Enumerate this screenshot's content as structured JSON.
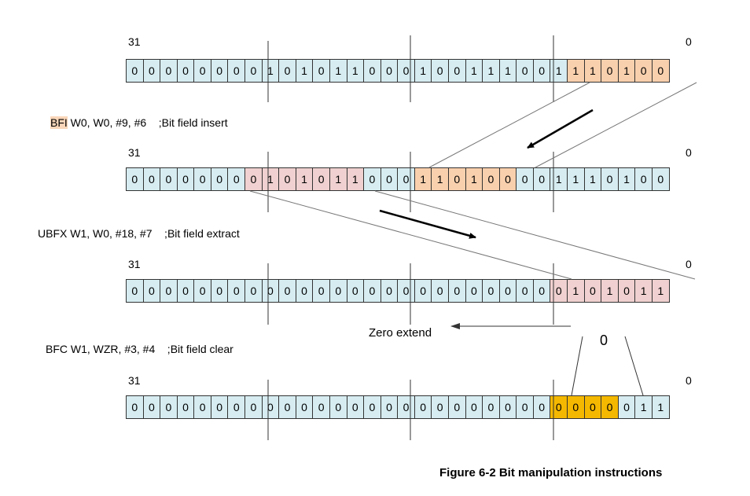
{
  "colors": {
    "normal": "#d6ecf1",
    "inserted_field": "#f9d0ad",
    "extracted_field": "#f0d0d0",
    "cleared_field": "#f5b800",
    "mnemonic_highlight": "#f9d6b9"
  },
  "registers": [
    {
      "msb_label": "31",
      "lsb_label": "0",
      "bits": [
        "0",
        "0",
        "0",
        "0",
        "0",
        "0",
        "0",
        "0",
        "1",
        "0",
        "1",
        "0",
        "1",
        "1",
        "0",
        "0",
        "0",
        "1",
        "0",
        "0",
        "1",
        "1",
        "1",
        "0",
        "0",
        "1",
        "1",
        "1",
        "0",
        "1",
        "0",
        "0"
      ],
      "highlight": [
        26,
        31
      ],
      "highlight_color": "peach"
    },
    {
      "msb_label": "31",
      "lsb_label": "0",
      "bits": [
        "0",
        "0",
        "0",
        "0",
        "0",
        "0",
        "0",
        "0",
        "1",
        "0",
        "1",
        "0",
        "1",
        "1",
        "0",
        "0",
        "0",
        "1",
        "1",
        "0",
        "1",
        "0",
        "0",
        "0",
        "0",
        "1",
        "1",
        "1",
        "0",
        "1",
        "0",
        "0"
      ],
      "highlight": [
        7,
        13
      ],
      "highlight_color": "pink",
      "highlight2": [
        17,
        22
      ],
      "highlight2_color": "peach"
    },
    {
      "msb_label": "31",
      "lsb_label": "0",
      "bits": [
        "0",
        "0",
        "0",
        "0",
        "0",
        "0",
        "0",
        "0",
        "0",
        "0",
        "0",
        "0",
        "0",
        "0",
        "0",
        "0",
        "0",
        "0",
        "0",
        "0",
        "0",
        "0",
        "0",
        "0",
        "0",
        "0",
        "1",
        "0",
        "1",
        "0",
        "1",
        "1"
      ],
      "highlight": [
        25,
        31
      ],
      "highlight_color": "pink"
    },
    {
      "msb_label": "31",
      "lsb_label": "0",
      "bits": [
        "0",
        "0",
        "0",
        "0",
        "0",
        "0",
        "0",
        "0",
        "0",
        "0",
        "0",
        "0",
        "0",
        "0",
        "0",
        "0",
        "0",
        "0",
        "0",
        "0",
        "0",
        "0",
        "0",
        "0",
        "0",
        "0",
        "0",
        "0",
        "0",
        "0",
        "1",
        "1"
      ],
      "highlight": [
        25,
        28
      ],
      "highlight_color": "gold"
    }
  ],
  "instructions": {
    "bfi_mnemonic": "BFI",
    "bfi_rest": " W0, W0, #9, #6    ;Bit field insert",
    "ubfx": "UBFX W1, W0, #18, #7    ;Bit field extract",
    "bfc": "BFC W1, WZR, #3, #4    ;Bit field clear"
  },
  "annotations": {
    "zero_extend": "Zero extend",
    "zero_value": "0"
  },
  "caption": "Figure 6-2 Bit manipulation instructions"
}
